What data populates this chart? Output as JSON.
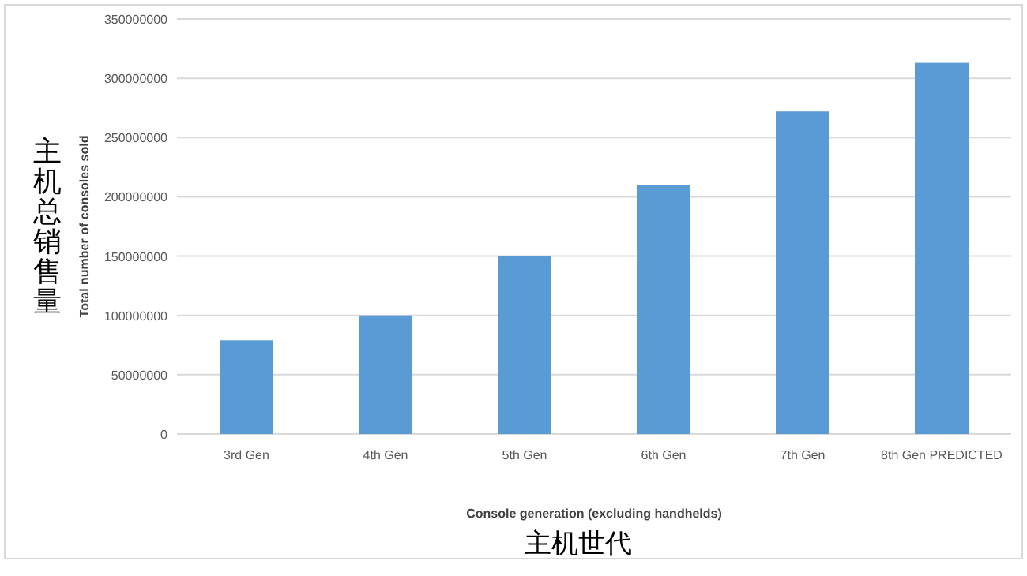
{
  "chart_data": {
    "type": "bar",
    "categories": [
      "3rd Gen",
      "4th Gen",
      "5th Gen",
      "6th Gen",
      "7th Gen",
      "8th Gen PREDICTED"
    ],
    "values": [
      79000000,
      100000000,
      150000000,
      210000000,
      272000000,
      313000000
    ],
    "color": "#5b9bd5",
    "ylim": [
      0,
      350000000
    ],
    "yticks": [
      0,
      50000000,
      100000000,
      150000000,
      200000000,
      250000000,
      300000000,
      350000000
    ],
    "grid": "y",
    "xlabel": "Console generation (excluding handhelds)",
    "ylabel": "Total number of consoles sold",
    "annotations": [
      "主机总销售量",
      "主机世代"
    ]
  }
}
